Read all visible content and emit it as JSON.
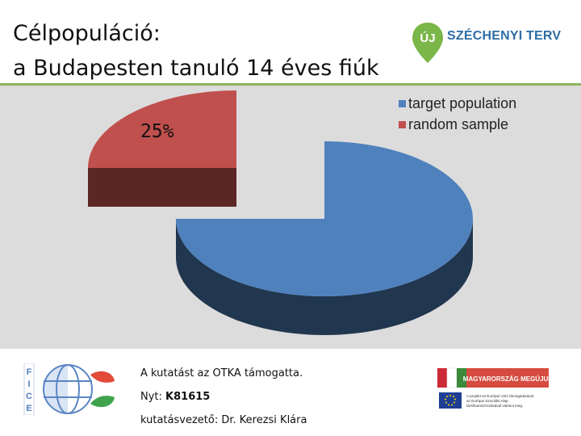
{
  "slide": {
    "title_line1": "Célpopuláció:",
    "title_line2": "a Budapesten tanuló 14 éves fiúk"
  },
  "logo": {
    "pin_text": "ÚJ",
    "text": "SZÉCHENYI TERV",
    "color": "#2e6da4",
    "pin_color": "#7ab648"
  },
  "chart_data": {
    "type": "pie",
    "style": "3d-exploded",
    "series": [
      {
        "name": "target population",
        "value": 75,
        "color": "#4f81bd"
      },
      {
        "name": "random sample",
        "value": 25,
        "color": "#c0504d"
      }
    ],
    "data_labels": [
      {
        "series": "random sample",
        "text": "25%"
      }
    ],
    "legend_position": "top-right",
    "background": "#dcdcdc"
  },
  "footer": {
    "line1": "A kutatást az OTKA támogatta.",
    "line2_label": "Nyt: ",
    "line2_value": "K81615",
    "line3": "kutatásvezető: Dr. Kerezsi Klára",
    "eu_banner": "MAGYARORSZÁG MEGÚJUL",
    "eu_small_text": "A projekt az Európai Unió támogatásával, az Európai Szociális Alap társfinanszírozásával valósul meg."
  }
}
